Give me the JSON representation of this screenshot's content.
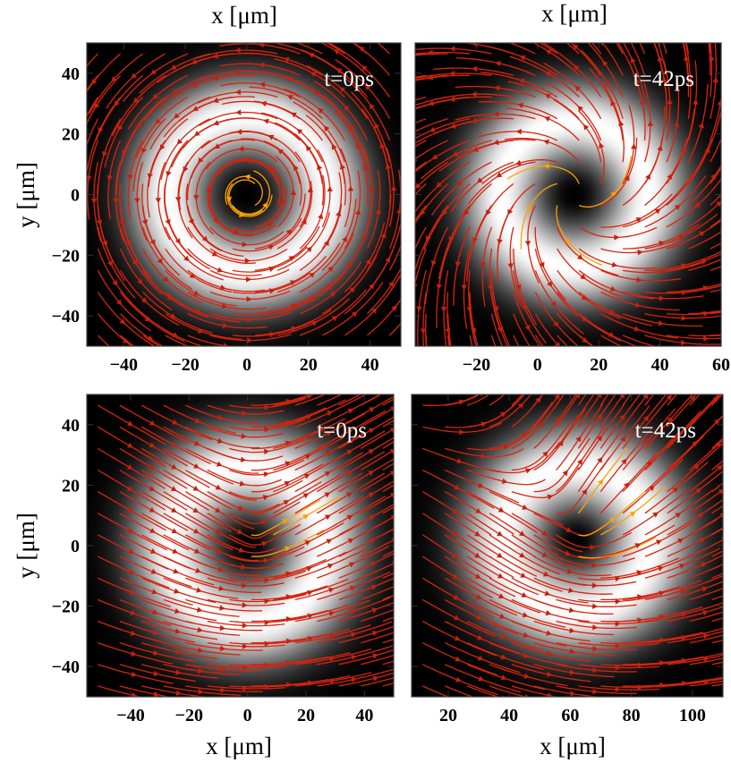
{
  "colors": {
    "streamline": "#d8230e",
    "arrow": "#c81f0c",
    "vortex_core": "#ffa000",
    "density_low": "#000000",
    "density_high": "#ffffff"
  },
  "chart_data": [
    {
      "type": "heatmap",
      "panel": "top-left",
      "time_label": "t=0ps",
      "xlabel": "x [μm]",
      "ylabel": "y [μm]",
      "xlim": [
        -52,
        50
      ],
      "ylim": [
        -50,
        50
      ],
      "xticks": [
        -40,
        -20,
        0,
        20,
        40
      ],
      "yticks": [
        -40,
        -20,
        0,
        20,
        40
      ],
      "xtick_labels": [
        "−40",
        "−20",
        "0",
        "20",
        "40"
      ],
      "ytick_labels": [
        "−40",
        "−20",
        "0",
        "20",
        "40"
      ],
      "density": {
        "center": [
          0,
          0
        ],
        "ring_radius": 26,
        "width": 12
      },
      "flow": {
        "vortex": [
          0,
          0
        ],
        "circulation": 1,
        "radial": 0,
        "uniform": [
          0,
          0
        ]
      }
    },
    {
      "type": "heatmap",
      "panel": "top-right",
      "time_label": "t=42ps",
      "xlabel": "x [μm]",
      "ylabel": "",
      "xlim": [
        -40,
        60
      ],
      "ylim": [
        -50,
        50
      ],
      "xticks": [
        -20,
        0,
        20,
        40,
        60
      ],
      "yticks": [
        -40,
        -20,
        0,
        20,
        40
      ],
      "xtick_labels": [
        "−20",
        "0",
        "20",
        "40",
        "60"
      ],
      "ytick_labels": [],
      "density": {
        "center": [
          12,
          0
        ],
        "ring_radius": 24,
        "width": 12
      },
      "flow": {
        "vortex": [
          12,
          0
        ],
        "circulation": 1,
        "radial": 0.9,
        "uniform": [
          0,
          0
        ]
      }
    },
    {
      "type": "heatmap",
      "panel": "bottom-left",
      "time_label": "t=0ps",
      "xlabel": "x [μm]",
      "ylabel": "y [μm]",
      "xlim": [
        -55,
        50
      ],
      "ylim": [
        -50,
        50
      ],
      "xticks": [
        -40,
        -20,
        0,
        20,
        40
      ],
      "yticks": [
        -40,
        -20,
        0,
        20,
        40
      ],
      "xtick_labels": [
        "−40",
        "−20",
        "0",
        "20",
        "40"
      ],
      "ytick_labels": [
        "−40",
        "−20",
        "0",
        "20",
        "40"
      ],
      "density": {
        "center": [
          0,
          0
        ],
        "ring_radius": 26,
        "width": 13
      },
      "flow": {
        "vortex": [
          2,
          2
        ],
        "circulation": 0.5,
        "radial": 0,
        "uniform": [
          1,
          0
        ]
      }
    },
    {
      "type": "heatmap",
      "panel": "bottom-right",
      "time_label": "t=42ps",
      "xlabel": "x [μm]",
      "ylabel": "",
      "xlim": [
        8,
        110
      ],
      "ylim": [
        -50,
        50
      ],
      "xticks": [
        20,
        40,
        60,
        80,
        100
      ],
      "yticks": [
        -40,
        -20,
        0,
        20,
        40
      ],
      "xtick_labels": [
        "20",
        "40",
        "60",
        "80",
        "100"
      ],
      "ytick_labels": [],
      "density": {
        "center": [
          62,
          2
        ],
        "ring_radius": 24,
        "width": 13
      },
      "flow": {
        "vortex": [
          64,
          4
        ],
        "circulation": 0.6,
        "radial": 0.4,
        "uniform": [
          1,
          0.2
        ]
      }
    }
  ]
}
